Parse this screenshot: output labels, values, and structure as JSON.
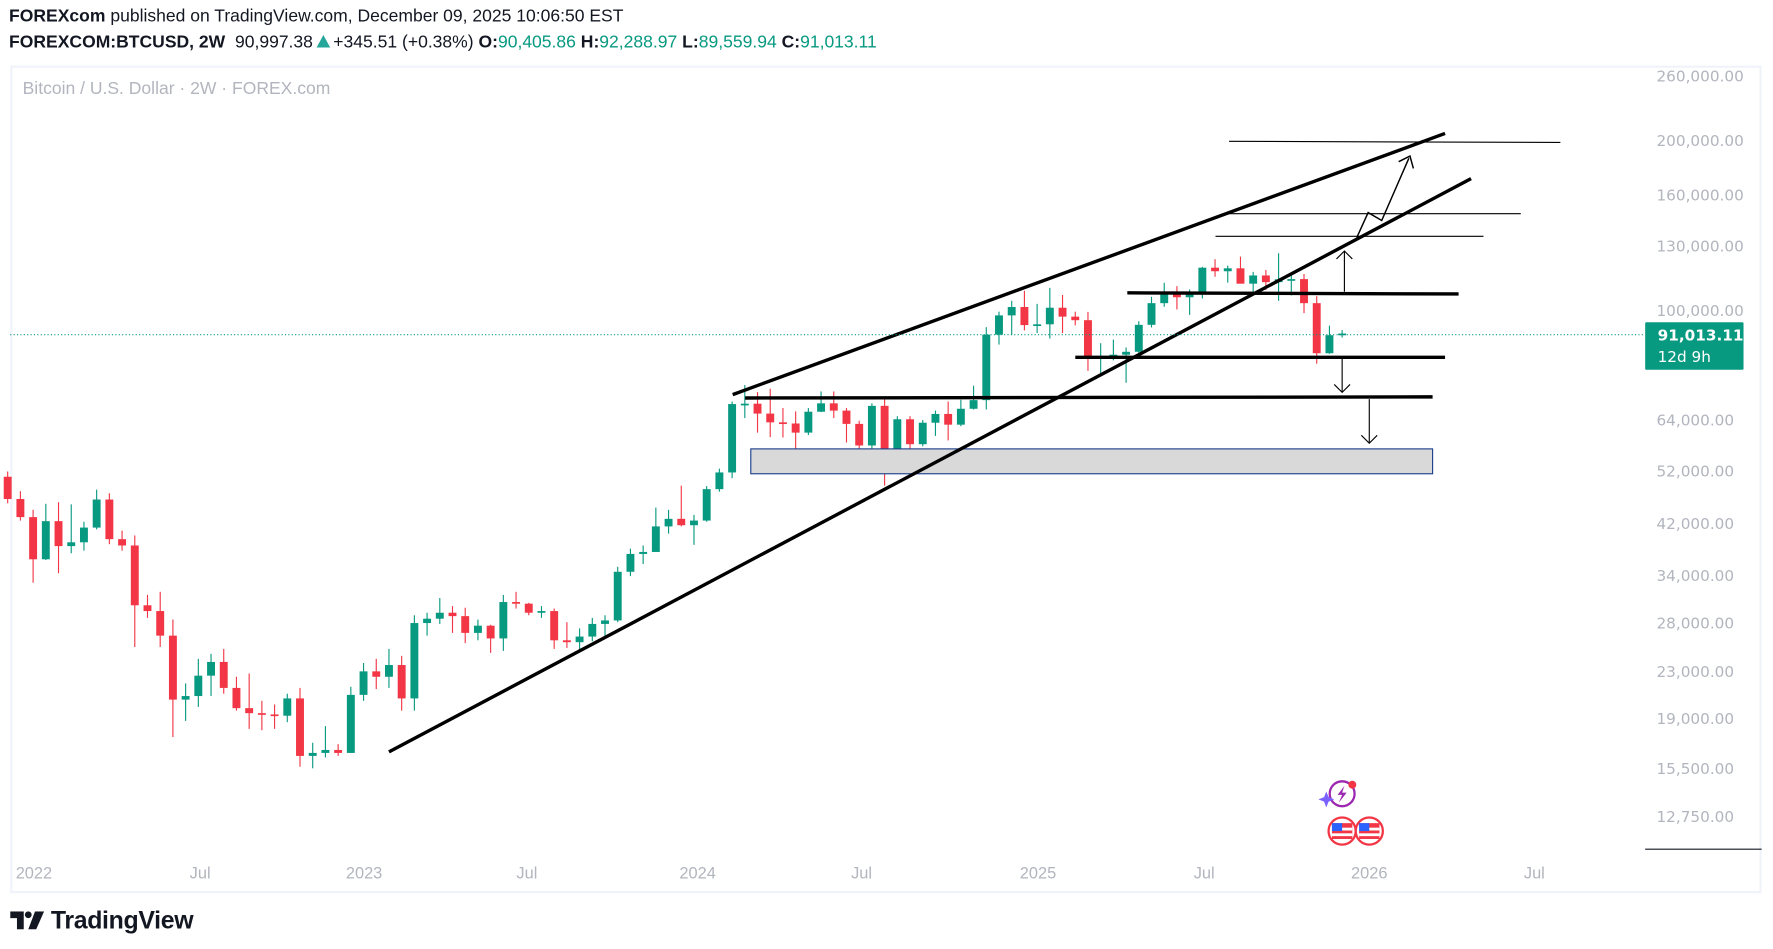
{
  "header": {
    "publisher": "FOREXcom",
    "published_text": "published on TradingView.com, December 09, 2025 10:06:50 EST",
    "symbol": "FOREXCOM:BTCUSD, 2W",
    "last": "90,997.38",
    "change": "+345.51 (+0.38%)",
    "o_label": "O:",
    "o": "90,405.86",
    "h_label": "H:",
    "h": "92,288.97",
    "l_label": "L:",
    "l": "89,559.94",
    "c_label": "C:",
    "c": "91,013.11"
  },
  "legend": "Bitcoin / U.S. Dollar · 2W · FOREX.com",
  "price_label": {
    "price": "91,013.11",
    "countdown": "12d 9h",
    "color": "#089981"
  },
  "footer": {
    "brand": "TradingView"
  },
  "colors": {
    "up": "#089981",
    "down": "#f23645",
    "zone_fill": "#d9d9d9",
    "zone_border": "#1c3f8c"
  },
  "chart_data": {
    "type": "candlestick",
    "title": "Bitcoin / U.S. Dollar · 2W · FOREX.com",
    "y_scale": "log",
    "ylim": [
      11500,
      290000
    ],
    "y_ticks": [
      "260,000.00",
      "200,000.00",
      "160,000.00",
      "130,000.00",
      "100,000.00",
      "64,000.00",
      "52,000.00",
      "42,000.00",
      "34,000.00",
      "28,000.00",
      "23,000.00",
      "19,000.00",
      "15,500.00",
      "12,750.00"
    ],
    "y_tick_values": [
      260000,
      200000,
      160000,
      130000,
      100000,
      64000,
      52000,
      42000,
      34000,
      28000,
      23000,
      19000,
      15500,
      12750
    ],
    "x_ticks": [
      "2022",
      "Jul",
      "2023",
      "Jul",
      "2024",
      "Jul",
      "2025",
      "Jul",
      "2026",
      "Jul"
    ],
    "last_price": 91013.11,
    "candles_ohlc": [
      [
        50800,
        51900,
        45600,
        46400
      ],
      [
        46400,
        47900,
        42500,
        43100
      ],
      [
        43100,
        44400,
        33000,
        36300
      ],
      [
        36300,
        45500,
        36200,
        42400
      ],
      [
        42400,
        45800,
        34300,
        38300
      ],
      [
        38300,
        45400,
        37200,
        38900
      ],
      [
        38900,
        42300,
        37600,
        41300
      ],
      [
        41300,
        48200,
        41000,
        46300
      ],
      [
        46300,
        47500,
        38600,
        39400
      ],
      [
        39400,
        40800,
        37600,
        38400
      ],
      [
        38400,
        40000,
        25400,
        30100
      ],
      [
        30100,
        31400,
        28600,
        29400
      ],
      [
        29400,
        31800,
        25400,
        26600
      ],
      [
        26600,
        28400,
        17600,
        20500
      ],
      [
        20500,
        21900,
        18800,
        20800
      ],
      [
        20800,
        24200,
        19900,
        22600
      ],
      [
        22600,
        24700,
        20800,
        23900
      ],
      [
        23900,
        25200,
        21000,
        21500
      ],
      [
        21500,
        22500,
        19600,
        19800
      ],
      [
        19800,
        22800,
        18200,
        19400
      ],
      [
        19400,
        20400,
        18100,
        19300
      ],
      [
        19300,
        20100,
        18200,
        19200
      ],
      [
        19200,
        21000,
        18700,
        20600
      ],
      [
        20600,
        21500,
        15600,
        16300
      ],
      [
        16300,
        17200,
        15500,
        16500
      ],
      [
        16500,
        18400,
        16200,
        16700
      ],
      [
        16700,
        17100,
        16300,
        16500
      ],
      [
        16500,
        21600,
        16500,
        20900
      ],
      [
        20900,
        23800,
        20400,
        23000
      ],
      [
        23000,
        24200,
        21400,
        22500
      ],
      [
        22500,
        25200,
        21500,
        23600
      ],
      [
        23600,
        24500,
        19600,
        20600
      ],
      [
        20600,
        28900,
        19600,
        28000
      ],
      [
        28000,
        29200,
        26600,
        28500
      ],
      [
        28500,
        31000,
        27900,
        29200
      ],
      [
        29200,
        30000,
        26900,
        28800
      ],
      [
        28800,
        29800,
        25800,
        26900
      ],
      [
        26900,
        28400,
        26100,
        27700
      ],
      [
        27700,
        27800,
        24800,
        26300
      ],
      [
        26300,
        31400,
        25000,
        30500
      ],
      [
        30500,
        31800,
        29700,
        30300
      ],
      [
        30300,
        30400,
        28900,
        29200
      ],
      [
        29200,
        30000,
        28600,
        29400
      ],
      [
        29400,
        29700,
        25200,
        26100
      ],
      [
        26100,
        28100,
        25300,
        25900
      ],
      [
        25900,
        27400,
        24900,
        26500
      ],
      [
        26500,
        28600,
        26000,
        27900
      ],
      [
        27900,
        28900,
        26500,
        28300
      ],
      [
        28300,
        35200,
        28100,
        34500
      ],
      [
        34500,
        37900,
        33900,
        37100
      ],
      [
        37100,
        38400,
        35600,
        37400
      ],
      [
        37400,
        44800,
        37400,
        41500
      ],
      [
        41500,
        44400,
        40300,
        42800
      ],
      [
        42800,
        49000,
        41500,
        41700
      ],
      [
        41700,
        43500,
        38500,
        42500
      ],
      [
        42500,
        48900,
        42300,
        48300
      ],
      [
        48300,
        52500,
        47800,
        51700
      ],
      [
        51700,
        69000,
        50500,
        68300
      ],
      [
        68300,
        73800,
        64500,
        68400
      ],
      [
        68400,
        71700,
        60800,
        65700
      ],
      [
        65700,
        72700,
        59700,
        63400
      ],
      [
        63400,
        67200,
        59600,
        63100
      ],
      [
        63100,
        66300,
        56600,
        60800
      ],
      [
        60800,
        67200,
        60200,
        66200
      ],
      [
        66200,
        71900,
        66100,
        68500
      ],
      [
        68500,
        71900,
        64500,
        66500
      ],
      [
        66500,
        67200,
        58400,
        63000
      ],
      [
        63000,
        63800,
        53500,
        57700
      ],
      [
        57700,
        68500,
        56600,
        67800
      ],
      [
        67800,
        70000,
        49000,
        53000
      ],
      [
        53000,
        65000,
        52700,
        64200
      ],
      [
        64200,
        65000,
        52500,
        58000
      ],
      [
        58000,
        64000,
        57500,
        63300
      ],
      [
        63300,
        66500,
        60000,
        65600
      ],
      [
        65600,
        69000,
        58900,
        62800
      ],
      [
        62800,
        69500,
        62400,
        67000
      ],
      [
        67000,
        73600,
        66800,
        69400
      ],
      [
        69400,
        93400,
        66800,
        90600
      ],
      [
        90600,
        99500,
        87000,
        98000
      ],
      [
        98000,
        104000,
        90500,
        101400
      ],
      [
        101400,
        108300,
        92200,
        94200
      ],
      [
        94200,
        102700,
        91200,
        94500
      ],
      [
        94500,
        109600,
        89200,
        101100
      ],
      [
        101100,
        106500,
        91200,
        97500
      ],
      [
        97500,
        99500,
        94100,
        96100
      ],
      [
        96100,
        99400,
        78200,
        82500
      ],
      [
        82500,
        87500,
        76600,
        82700
      ],
      [
        82700,
        88800,
        81600,
        83500
      ],
      [
        83500,
        86000,
        74500,
        84500
      ],
      [
        84500,
        95700,
        83800,
        94300
      ],
      [
        94300,
        105700,
        93300,
        103000
      ],
      [
        103000,
        111900,
        101500,
        108000
      ],
      [
        108000,
        110400,
        100400,
        105500
      ],
      [
        105500,
        108900,
        98200,
        107300
      ],
      [
        107300,
        119400,
        105000,
        119000
      ],
      [
        119000,
        123200,
        114700,
        117300
      ],
      [
        117300,
        120000,
        112000,
        118700
      ],
      [
        118700,
        124500,
        114700,
        111500
      ],
      [
        111500,
        117000,
        107300,
        115300
      ],
      [
        115300,
        117900,
        108700,
        112200
      ],
      [
        112200,
        126200,
        104000,
        113500
      ],
      [
        113500,
        116400,
        106300,
        113600
      ],
      [
        113600,
        116000,
        98900,
        103000
      ],
      [
        103000,
        106000,
        80500,
        84000
      ],
      [
        84000,
        94000,
        83800,
        90400
      ],
      [
        90406,
        92289,
        89560,
        91013
      ]
    ]
  }
}
